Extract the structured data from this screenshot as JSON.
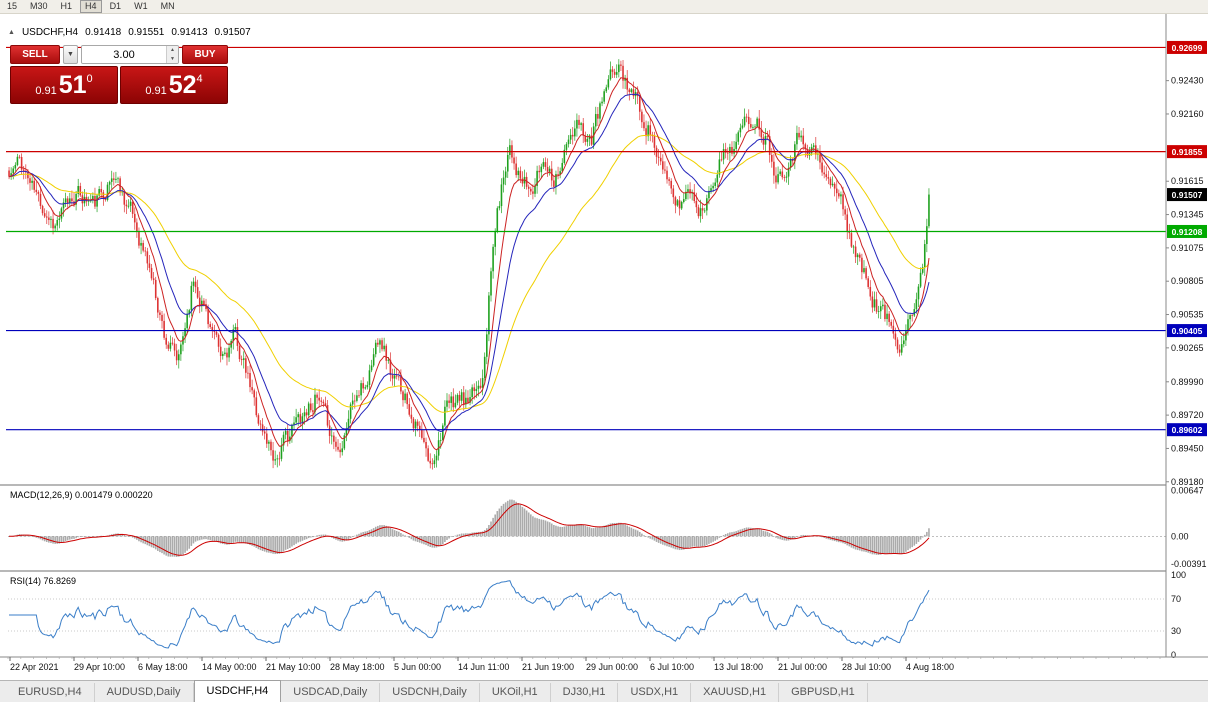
{
  "toolbar": {
    "timeframes": [
      "15",
      "M30",
      "H1",
      "H4",
      "D1",
      "W1",
      "MN"
    ],
    "active": "H4"
  },
  "chart_header": {
    "symbol": "USDCHF,H4",
    "open": "0.91418",
    "high": "0.91551",
    "low": "0.91413",
    "close": "0.91507"
  },
  "trade_panel": {
    "sell_label": "SELL",
    "buy_label": "BUY",
    "volume": "3.00",
    "sell_price": {
      "base": "0.91",
      "big": "51",
      "sup": "0"
    },
    "buy_price": {
      "base": "0.91",
      "big": "52",
      "sup": "4"
    }
  },
  "indicators": {
    "macd": {
      "label": "MACD(12,26,9) 0.001479 0.000220"
    },
    "rsi": {
      "label": "RSI(14) 76.8269"
    }
  },
  "time_axis": [
    "22 Apr 2021",
    "29 Apr 10:00",
    "6 May 18:00",
    "14 May 00:00",
    "21 May 10:00",
    "28 May 18:00",
    "5 Jun 00:00",
    "14 Jun 11:00",
    "21 Jun 19:00",
    "29 Jun 00:00",
    "6 Jul 10:00",
    "13 Jul 18:00",
    "21 Jul 00:00",
    "28 Jul 10:00",
    "4 Aug 18:00"
  ],
  "tabs": [
    "EURUSD,H4",
    "AUDUSD,Daily",
    "USDCHF,H4",
    "USDCAD,Daily",
    "USDCNH,Daily",
    "UKOil,H1",
    "DJ30,H1",
    "USDX,H1",
    "XAUUSD,H1",
    "GBPUSD,H1"
  ],
  "active_tab": "USDCHF,H4",
  "chart_data": {
    "type": "candlestick",
    "symbol": "USDCHF",
    "timeframe": "H4",
    "current_ohlc": {
      "open": 0.91418,
      "high": 0.91551,
      "low": 0.91413,
      "close": 0.91507
    },
    "price_range": [
      0.8917,
      0.9297
    ],
    "axis_prices": [
      0.9243,
      0.9216,
      0.91615,
      0.91345,
      0.91075,
      0.90805,
      0.90535,
      0.90265,
      0.8999,
      0.8972,
      0.8945,
      0.8918
    ],
    "h_lines": [
      {
        "price": 0.92699,
        "label": "0.92699",
        "color": "#cc0000"
      },
      {
        "price": 0.91855,
        "label": "0.91855",
        "color": "#cc0000"
      },
      {
        "price": 0.91208,
        "label": "0.91208",
        "color": "#00aa00"
      },
      {
        "price": 0.90405,
        "label": "0.90405",
        "color": "#0000bb"
      },
      {
        "price": 0.89602,
        "label": "0.89602",
        "color": "#0000bb"
      }
    ],
    "current_price": {
      "value": 0.91507,
      "label": "0.91507",
      "color": "#000000"
    },
    "candle_count": 440,
    "seed": 11,
    "close_path": [
      [
        0.0,
        0.9165
      ],
      [
        0.012,
        0.9178
      ],
      [
        0.03,
        0.9149
      ],
      [
        0.05,
        0.9127
      ],
      [
        0.072,
        0.9152
      ],
      [
        0.093,
        0.9143
      ],
      [
        0.115,
        0.9167
      ],
      [
        0.132,
        0.9138
      ],
      [
        0.154,
        0.9088
      ],
      [
        0.17,
        0.9035
      ],
      [
        0.184,
        0.9012
      ],
      [
        0.2,
        0.9083
      ],
      [
        0.214,
        0.9058
      ],
      [
        0.23,
        0.9015
      ],
      [
        0.246,
        0.9036
      ],
      [
        0.262,
        0.8993
      ],
      [
        0.276,
        0.8958
      ],
      [
        0.29,
        0.8938
      ],
      [
        0.304,
        0.8956
      ],
      [
        0.318,
        0.8973
      ],
      [
        0.333,
        0.8986
      ],
      [
        0.35,
        0.8958
      ],
      [
        0.358,
        0.8944
      ],
      [
        0.373,
        0.8984
      ],
      [
        0.388,
        0.8996
      ],
      [
        0.403,
        0.9042
      ],
      [
        0.417,
        0.9001
      ],
      [
        0.431,
        0.8989
      ],
      [
        0.445,
        0.8959
      ],
      [
        0.458,
        0.8928
      ],
      [
        0.474,
        0.8974
      ],
      [
        0.489,
        0.8986
      ],
      [
        0.501,
        0.8979
      ],
      [
        0.514,
        0.9003
      ],
      [
        0.528,
        0.9122
      ],
      [
        0.544,
        0.9196
      ],
      [
        0.556,
        0.9161
      ],
      [
        0.568,
        0.9151
      ],
      [
        0.582,
        0.9181
      ],
      [
        0.593,
        0.9166
      ],
      [
        0.607,
        0.9191
      ],
      [
        0.62,
        0.9206
      ],
      [
        0.633,
        0.9196
      ],
      [
        0.647,
        0.9231
      ],
      [
        0.662,
        0.9256
      ],
      [
        0.672,
        0.9241
      ],
      [
        0.685,
        0.9221
      ],
      [
        0.698,
        0.9201
      ],
      [
        0.713,
        0.9161
      ],
      [
        0.727,
        0.9141
      ],
      [
        0.74,
        0.9156
      ],
      [
        0.753,
        0.9136
      ],
      [
        0.767,
        0.9171
      ],
      [
        0.781,
        0.9186
      ],
      [
        0.796,
        0.9201
      ],
      [
        0.81,
        0.9216
      ],
      [
        0.824,
        0.9196
      ],
      [
        0.835,
        0.9166
      ],
      [
        0.848,
        0.9181
      ],
      [
        0.861,
        0.9201
      ],
      [
        0.875,
        0.9186
      ],
      [
        0.889,
        0.9161
      ],
      [
        0.902,
        0.9151
      ],
      [
        0.915,
        0.9116
      ],
      [
        0.929,
        0.9086
      ],
      [
        0.943,
        0.9061
      ],
      [
        0.957,
        0.9046
      ],
      [
        0.967,
        0.9031
      ],
      [
        0.976,
        0.9051
      ],
      [
        0.985,
        0.9061
      ],
      [
        0.992,
        0.9082
      ],
      [
        1.0,
        0.9151
      ]
    ],
    "ma_lines": [
      {
        "period": 55,
        "color": "#f0d000"
      },
      {
        "period": 21,
        "color": "#2525bb"
      },
      {
        "period": 9,
        "color": "#cc2222"
      }
    ],
    "candle_colors": {
      "up": "#1fa11f",
      "down": "#dd3333"
    },
    "macd": {
      "fast": 12,
      "slow": 26,
      "signal": 9,
      "axis": [
        0.00647,
        0,
        -0.00391
      ],
      "range": [
        -0.0045,
        0.007
      ],
      "hist_color": "#ababab",
      "signal_color": "#cc0000"
    },
    "rsi": {
      "period": 14,
      "axis": [
        100,
        70,
        30,
        0
      ],
      "levels": [
        70,
        30
      ],
      "color": "#3a7ec8",
      "range": [
        0,
        100
      ]
    }
  }
}
